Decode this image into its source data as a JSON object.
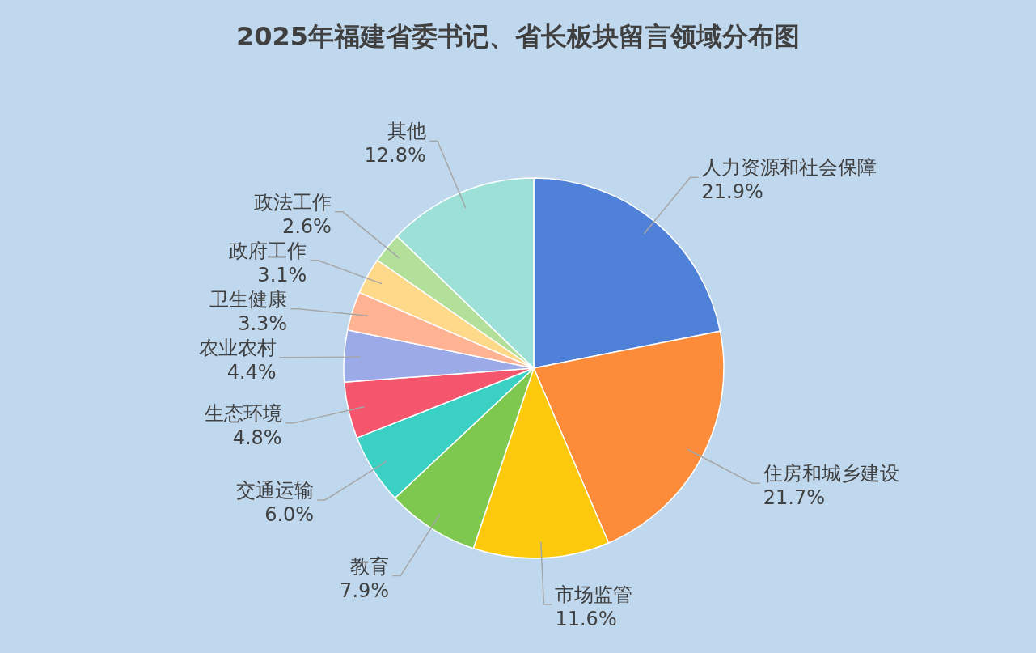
{
  "chart_data": {
    "type": "pie",
    "title": "2025年福建省委书记、省长板块留言领域分布图",
    "categories": [
      "人力资源和社会保障",
      "住房和城乡建设",
      "市场监管",
      "教育",
      "交通运输",
      "生态环境",
      "农业农村",
      "卫生健康",
      "政府工作",
      "政法工作",
      "其他"
    ],
    "values": [
      21.9,
      21.7,
      11.6,
      7.9,
      6.0,
      4.8,
      4.4,
      3.3,
      3.1,
      2.6,
      12.8
    ],
    "value_labels": [
      "21.9%",
      "21.7%",
      "11.6%",
      "7.9%",
      "6.0%",
      "4.8%",
      "4.4%",
      "3.3%",
      "3.1%",
      "2.6%",
      "12.8%"
    ],
    "colors": [
      "#5081d8",
      "#fd8c3a",
      "#fdc90d",
      "#7ec850",
      "#3ad0c4",
      "#f5566e",
      "#9cabe8",
      "#ffb392",
      "#ffd98a",
      "#b2e09a",
      "#9ce0d8"
    ]
  }
}
